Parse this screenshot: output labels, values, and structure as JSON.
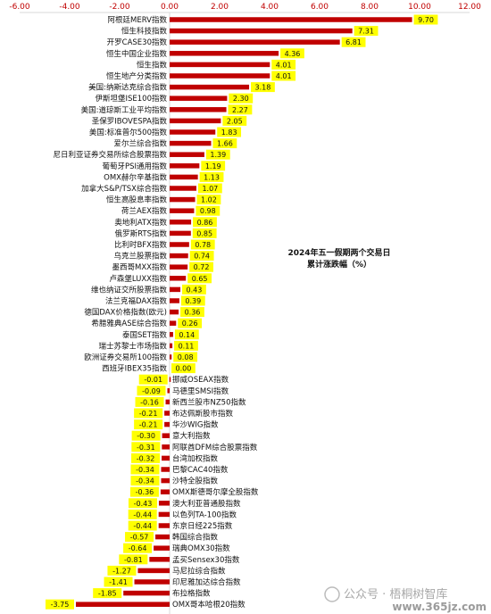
{
  "chart_data": {
    "type": "bar",
    "orientation": "horizontal",
    "annotation": [
      "2024年五一假期两个交易日",
      "累计涨跌幅（%）"
    ],
    "xlim": [
      -6,
      12
    ],
    "x_ticks": [
      "-6.00",
      "-4.00",
      "-2.00",
      "0.00",
      "2.00",
      "4.00",
      "6.00",
      "8.00",
      "10.00",
      "12.00"
    ],
    "axis_position": "top",
    "grid": false,
    "legend": "none",
    "colors": {
      "bar": "#c00000",
      "label_highlight": "#ffff00",
      "tick_text": "#c00000",
      "axis_line": "#d9d9d9"
    },
    "categories": [
      "阿根廷MERV指数",
      "恒生科技指数",
      "开罗CASE30指数",
      "恒生中国企业指数",
      "恒生指数",
      "恒生地产分类指数",
      "美国:纳斯达克综合指数",
      "伊斯坦堡ISE100指数",
      "美国:道琼斯工业平均指数",
      "圣保罗IBOVESPA指数",
      "美国:标准普尔500指数",
      "爱尔兰综合指数",
      "尼日利亚证券交易所综合股票指数",
      "葡萄牙PSI通用指数",
      "OMX赫尔辛基指数",
      "加拿大S&P/TSX综合指数",
      "恒生高股息率指数",
      "荷兰AEX指数",
      "奥地利ATX指数",
      "俄罗斯RTS指数",
      "比利时BFX指数",
      "乌克兰股票指数",
      "墨西哥MXX指数",
      "卢森堡LUXX指数",
      "维也纳证交所股票指数",
      "法兰克福DAX指数",
      "德国DAX价格指数(欧元)",
      "希腊雅典ASE综合指数",
      "泰国SET指数",
      "瑞士苏黎士市场指数",
      "欧洲证券交易所100指数",
      "西班牙IBEX35指数",
      "挪威OSEAX指数",
      "马德里SMSI指数",
      "新西兰股市NZ50指数",
      "布达佩斯股市指数",
      "华沙WIG指数",
      "意大利指数",
      "阿联酋DFM综合股票指数",
      "台湾加权指数",
      "巴黎CAC40指数",
      "沙特全股指数",
      "OMX斯德哥尔摩全股指数",
      "澳大利亚普通股指数",
      "以色列TA-100指数",
      "东京日经225指数",
      "韩国综合指数",
      "瑞典OMX30指数",
      "孟买Sensex30指数",
      "马尼拉综合指数",
      "印尼雅加达综合指数",
      "布拉格指数",
      "OMX哥本哈根20指数"
    ],
    "values": [
      9.7,
      7.31,
      6.81,
      4.36,
      4.01,
      4.01,
      3.18,
      2.3,
      2.27,
      2.05,
      1.83,
      1.66,
      1.39,
      1.19,
      1.13,
      1.07,
      1.02,
      0.98,
      0.86,
      0.85,
      0.78,
      0.74,
      0.72,
      0.65,
      0.43,
      0.39,
      0.36,
      0.26,
      0.14,
      0.11,
      0.08,
      0.0,
      -0.01,
      -0.09,
      -0.16,
      -0.21,
      -0.21,
      -0.3,
      -0.31,
      -0.32,
      -0.34,
      -0.34,
      -0.36,
      -0.43,
      -0.44,
      -0.44,
      -0.57,
      -0.64,
      -0.81,
      -1.27,
      -1.41,
      -1.85,
      -3.75
    ],
    "data_labels": [
      "9.70",
      "7.31",
      "6.81",
      "4.36",
      "4.01",
      "4.01",
      "3.18",
      "2.30",
      "2.27",
      "2.05",
      "1.83",
      "1.66",
      "1.39",
      "1.19",
      "1.13",
      "1.07",
      "1.02",
      "0.98",
      "0.86",
      "0.85",
      "0.78",
      "0.74",
      "0.72",
      "0.65",
      "0.43",
      "0.39",
      "0.36",
      "0.26",
      "0.14",
      "0.11",
      "0.08",
      "0.00",
      "-0.01",
      "-0.09",
      "-0.16",
      "-0.21",
      "-0.21",
      "-0.30",
      "-0.31",
      "-0.32",
      "-0.34",
      "-0.34",
      "-0.36",
      "-0.43",
      "-0.44",
      "-0.44",
      "-0.57",
      "-0.64",
      "-0.81",
      "-1.27",
      "-1.41",
      "-1.85",
      "-3.75"
    ]
  },
  "watermark": {
    "text": "公众号 · 梧桐树智库",
    "site": "www.365jz.com"
  }
}
